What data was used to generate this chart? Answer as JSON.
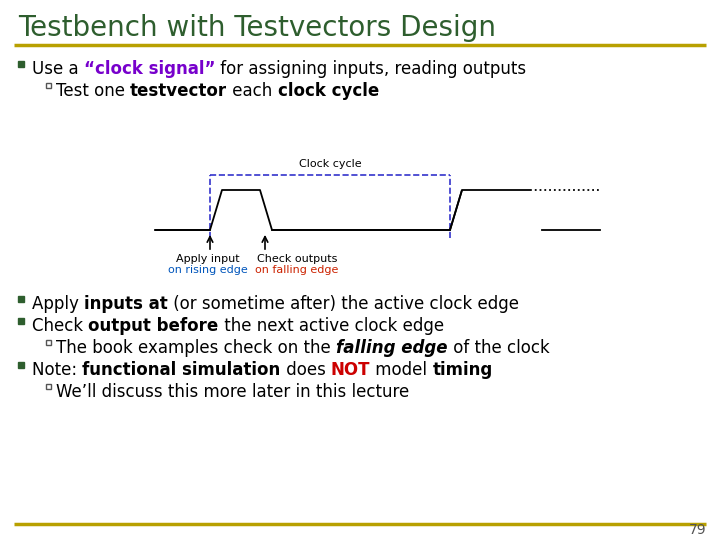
{
  "title": "Testbench with Testvectors Design",
  "title_color": "#2E5E2E",
  "title_fontsize": 20,
  "bg_color": "#FFFFFF",
  "gold_line_color": "#B8A000",
  "bullet_color": "#2E5E2E",
  "clock_label": "Clock cycle",
  "apply_label_line1": "Apply input",
  "apply_label_line2": "on rising edge",
  "check_label_line1": "Check outputs",
  "check_label_line2": "on falling edge",
  "rising_edge_color": "#0055BB",
  "falling_edge_color": "#CC2200",
  "dashed_line_color": "#3333CC",
  "clock_signal_color": "#7700CC",
  "page_number": "79",
  "sub_bullet_box_color": "#888800"
}
